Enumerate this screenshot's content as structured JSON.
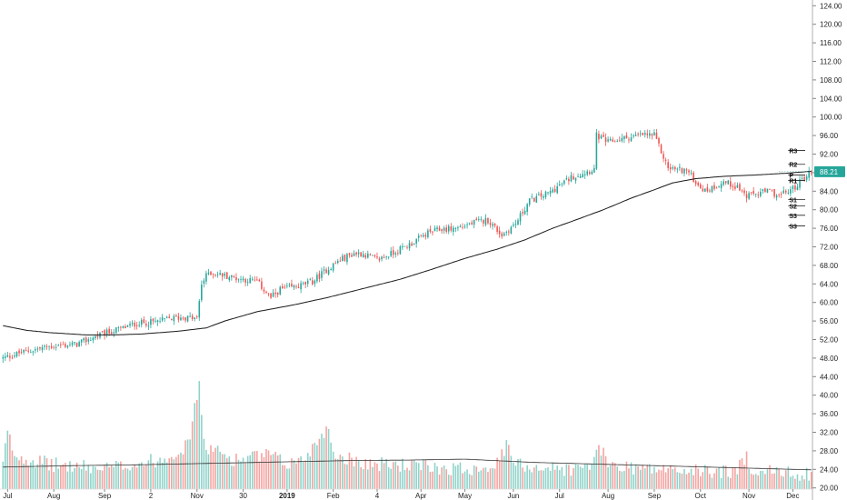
{
  "chart_data": {
    "type": "candlestick",
    "title": "",
    "y_axis": {
      "range": [
        18.8,
        126.8
      ],
      "ticks": [
        "124.00",
        "120.00",
        "116.00",
        "112.00",
        "108.00",
        "104.00",
        "100.00",
        "96.00",
        "92.00",
        "88.00",
        "84.00",
        "80.00",
        "76.00",
        "72.00",
        "68.00",
        "64.00",
        "60.00",
        "56.00",
        "52.00",
        "48.00",
        "44.00",
        "40.00",
        "36.00",
        "32.00",
        "28.00",
        "24.00",
        "20.00"
      ],
      "position": "right"
    },
    "x_axis": {
      "labels": [
        {
          "text": "Jul",
          "bar": 2,
          "bold": false
        },
        {
          "text": "Aug",
          "bar": 22,
          "bold": false
        },
        {
          "text": "Sep",
          "bar": 44,
          "bold": false
        },
        {
          "text": "2",
          "bar": 64,
          "bold": false
        },
        {
          "text": "Nov",
          "bar": 84,
          "bold": false
        },
        {
          "text": "30",
          "bar": 104,
          "bold": false
        },
        {
          "text": "2019",
          "bar": 123,
          "bold": true
        },
        {
          "text": "Feb",
          "bar": 143,
          "bold": false
        },
        {
          "text": "4",
          "bar": 162,
          "bold": false
        },
        {
          "text": "Apr",
          "bar": 181,
          "bold": false
        },
        {
          "text": "May",
          "bar": 200,
          "bold": false
        },
        {
          "text": "Jun",
          "bar": 221,
          "bold": false
        },
        {
          "text": "Jul",
          "bar": 241,
          "bold": false
        },
        {
          "text": "Aug",
          "bar": 262,
          "bold": false
        },
        {
          "text": "Sep",
          "bar": 282,
          "bold": false
        },
        {
          "text": "Oct",
          "bar": 302,
          "bold": false
        },
        {
          "text": "Nov",
          "bar": 323,
          "bold": false
        },
        {
          "text": "Dec",
          "bar": 342,
          "bold": false
        }
      ],
      "bar_count": 351
    },
    "price_anchors": [
      [
        0,
        48
      ],
      [
        8,
        49.2
      ],
      [
        20,
        50.5
      ],
      [
        32,
        51
      ],
      [
        42,
        53
      ],
      [
        52,
        54.5
      ],
      [
        58,
        55.5
      ],
      [
        66,
        55.8
      ],
      [
        72,
        56.5
      ],
      [
        78,
        56.8
      ],
      [
        84,
        56.5
      ],
      [
        86,
        64
      ],
      [
        89,
        66.5
      ],
      [
        96,
        65.8
      ],
      [
        104,
        65
      ],
      [
        110,
        64.5
      ],
      [
        116,
        61
      ],
      [
        120,
        62.8
      ],
      [
        128,
        63.5
      ],
      [
        134,
        64.5
      ],
      [
        140,
        67
      ],
      [
        146,
        69.2
      ],
      [
        152,
        70.6
      ],
      [
        156,
        70.5
      ],
      [
        162,
        69.2
      ],
      [
        168,
        70.5
      ],
      [
        176,
        72.5
      ],
      [
        184,
        75
      ],
      [
        190,
        75.8
      ],
      [
        196,
        76
      ],
      [
        204,
        77.2
      ],
      [
        210,
        77.8
      ],
      [
        216,
        74.5
      ],
      [
        222,
        77
      ],
      [
        228,
        82
      ],
      [
        236,
        83.5
      ],
      [
        246,
        87
      ],
      [
        256,
        88.8
      ],
      [
        257,
        96
      ],
      [
        262,
        94.5
      ],
      [
        270,
        95.5
      ],
      [
        278,
        96.2
      ],
      [
        282,
        96
      ],
      [
        288,
        89
      ],
      [
        296,
        88.5
      ],
      [
        300,
        86
      ],
      [
        304,
        84
      ],
      [
        312,
        86
      ],
      [
        318,
        85
      ],
      [
        322,
        82.8
      ],
      [
        326,
        83.5
      ],
      [
        332,
        84
      ],
      [
        336,
        83
      ],
      [
        342,
        84.5
      ],
      [
        348,
        87.5
      ],
      [
        350,
        88.2
      ]
    ],
    "volume_anchors": [
      [
        0,
        26
      ],
      [
        2,
        33
      ],
      [
        5,
        28
      ],
      [
        20,
        26
      ],
      [
        44,
        25
      ],
      [
        56,
        26
      ],
      [
        68,
        27
      ],
      [
        80,
        30
      ],
      [
        83,
        38
      ],
      [
        85,
        44
      ],
      [
        87,
        30
      ],
      [
        100,
        27
      ],
      [
        116,
        28
      ],
      [
        122,
        26
      ],
      [
        130,
        27
      ],
      [
        136,
        31
      ],
      [
        140,
        34
      ],
      [
        144,
        28
      ],
      [
        160,
        26
      ],
      [
        170,
        26
      ],
      [
        180,
        25.5
      ],
      [
        200,
        25
      ],
      [
        214,
        26
      ],
      [
        218,
        30
      ],
      [
        222,
        26
      ],
      [
        240,
        25
      ],
      [
        250,
        25
      ],
      [
        256,
        26.5
      ],
      [
        258,
        30
      ],
      [
        262,
        26
      ],
      [
        280,
        25
      ],
      [
        300,
        24.5
      ],
      [
        318,
        24.5
      ],
      [
        322,
        28
      ],
      [
        324,
        25
      ],
      [
        340,
        24
      ],
      [
        350,
        24
      ]
    ],
    "moving_average": {
      "anchors": [
        [
          0,
          55
        ],
        [
          10,
          54
        ],
        [
          20,
          53.5
        ],
        [
          36,
          53
        ],
        [
          48,
          53
        ],
        [
          60,
          53.2
        ],
        [
          76,
          53.8
        ],
        [
          88,
          54.5
        ],
        [
          96,
          56
        ],
        [
          110,
          58
        ],
        [
          126,
          59.5
        ],
        [
          140,
          61
        ],
        [
          156,
          63
        ],
        [
          172,
          65
        ],
        [
          186,
          67.2
        ],
        [
          200,
          69.5
        ],
        [
          214,
          71.5
        ],
        [
          226,
          73.5
        ],
        [
          238,
          76
        ],
        [
          248,
          77.8
        ],
        [
          260,
          80
        ],
        [
          272,
          82.5
        ],
        [
          282,
          84.3
        ],
        [
          290,
          85.8
        ],
        [
          300,
          86.7
        ],
        [
          312,
          87.2
        ],
        [
          326,
          87.5
        ],
        [
          340,
          87.9
        ],
        [
          350,
          88.3
        ]
      ],
      "color": "#1a1a1a"
    },
    "volume_ma_anchors": [
      [
        0,
        24.5
      ],
      [
        30,
        24.8
      ],
      [
        60,
        25
      ],
      [
        90,
        25.3
      ],
      [
        120,
        25.6
      ],
      [
        150,
        25.9
      ],
      [
        175,
        26
      ],
      [
        200,
        26.2
      ],
      [
        230,
        25.5
      ],
      [
        260,
        25.1
      ],
      [
        290,
        24.7
      ],
      [
        320,
        24.3
      ],
      [
        350,
        23.9
      ]
    ],
    "pivots": {
      "bar_start": 340,
      "levels": [
        {
          "label": "R3",
          "value": 92.8
        },
        {
          "label": "R2",
          "value": 89.8
        },
        {
          "label": "R1",
          "value": 86.3
        },
        {
          "label": "P",
          "value": 87.5
        },
        {
          "label": "S1",
          "value": 82.2
        },
        {
          "label": "S2",
          "value": 80.8
        },
        {
          "label": "S3",
          "value": 78.8
        },
        {
          "label": "S3",
          "value": 76.5
        }
      ]
    },
    "last_price": {
      "label": "88.21",
      "value": 88.21
    },
    "colors": {
      "up": "#26a69a",
      "down": "#ef5350",
      "volume_up": "#8fd3c9",
      "volume_down": "#f4a3a0",
      "badge": "#26a69a",
      "grid": "#dddddd",
      "axis_text": "#222222"
    }
  }
}
